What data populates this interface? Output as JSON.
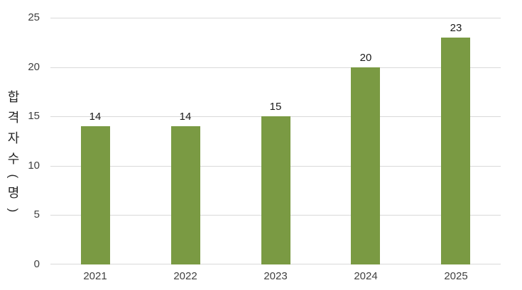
{
  "chart_data": {
    "type": "bar",
    "categories": [
      "2021",
      "2022",
      "2023",
      "2024",
      "2025"
    ],
    "values": [
      14,
      14,
      15,
      20,
      23
    ],
    "data_labels": [
      14,
      14,
      15,
      20,
      23
    ],
    "title": "",
    "xlabel": "",
    "ylabel": "합격자수(명)",
    "ylim": [
      0,
      25
    ],
    "yticks": [
      0,
      5,
      10,
      15,
      20,
      25
    ],
    "grid": "horizontal",
    "legend": "none"
  },
  "colors": {
    "bar": "#7A9A43",
    "gridline": "#D9D9D9",
    "axis_tick_text": "#404040",
    "data_label_text": "#1a1a1a",
    "y_title_text": "#262626",
    "background": "#FFFFFF"
  }
}
